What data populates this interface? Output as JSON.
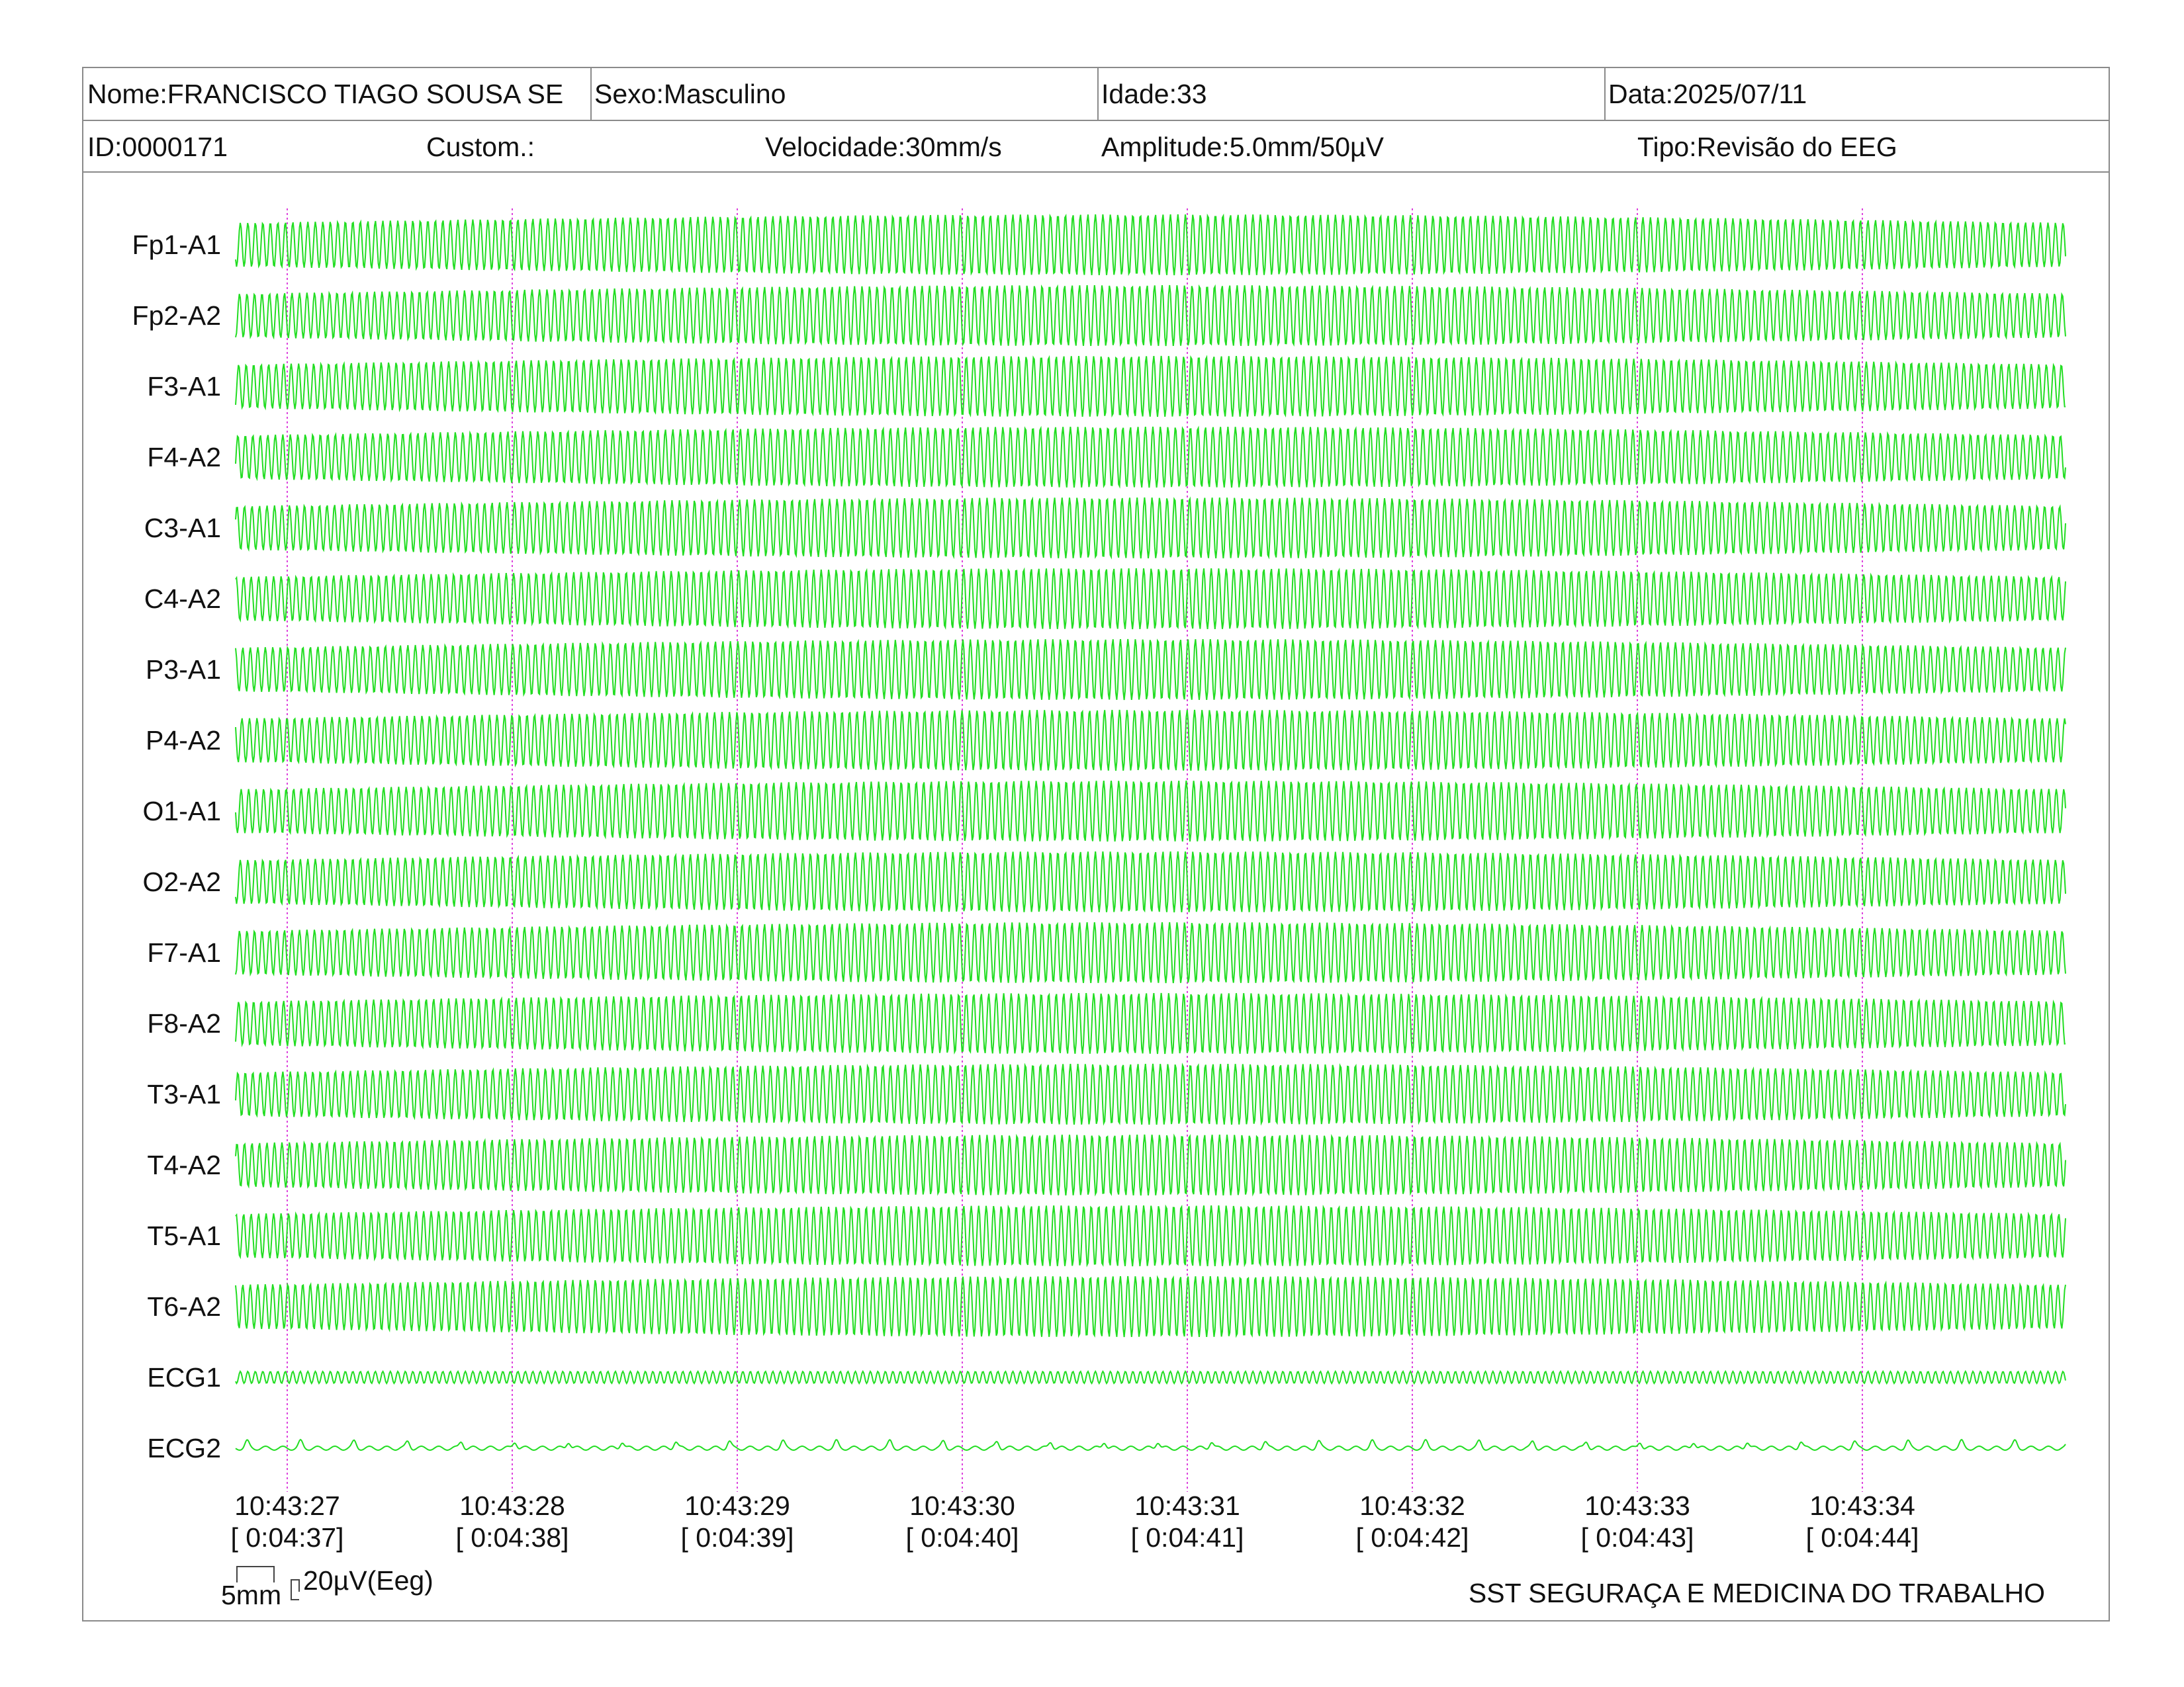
{
  "header": {
    "name": "Nome:FRANCISCO TIAGO SOUSA SE",
    "sex": "Sexo:Masculino",
    "age": "Idade:33",
    "date": "Data:2025/07/11",
    "id": "ID:0000171",
    "custom": "Custom.:",
    "speed": "Velocidade:30mm/s",
    "amplitude": "Amplitude:5.0mm/50µV",
    "type": "Tipo:Revisão do EEG"
  },
  "scale": {
    "time_label": "5mm",
    "amp_label": "20µV(Eeg)"
  },
  "footer": {
    "company": "SST SEGURAÇA E MEDICINA DO TRABALHO"
  },
  "colors": {
    "trace": "#22dd22",
    "marker": "#dd44dd",
    "border": "#8a8a8a"
  },
  "chart_data": {
    "type": "line",
    "title": "",
    "channels": [
      "Fp1-A1",
      "Fp2-A2",
      "F3-A1",
      "F4-A2",
      "C3-A1",
      "C4-A2",
      "P3-A1",
      "P4-A2",
      "O1-A1",
      "O2-A2",
      "F7-A1",
      "F8-A2",
      "T3-A1",
      "T4-A2",
      "T5-A1",
      "T6-A2",
      "ECG1",
      "ECG2"
    ],
    "time_ticks": [
      {
        "clock": "10:43:27",
        "elapsed": "[ 0:04:37]"
      },
      {
        "clock": "10:43:28",
        "elapsed": "[ 0:04:38]"
      },
      {
        "clock": "10:43:29",
        "elapsed": "[ 0:04:39]"
      },
      {
        "clock": "10:43:30",
        "elapsed": "[ 0:04:40]"
      },
      {
        "clock": "10:43:31",
        "elapsed": "[ 0:04:41]"
      },
      {
        "clock": "10:43:32",
        "elapsed": "[ 0:04:42]"
      },
      {
        "clock": "10:43:33",
        "elapsed": "[ 0:04:43]"
      },
      {
        "clock": "10:43:34",
        "elapsed": "[ 0:04:44]"
      }
    ],
    "x_range_seconds": [
      -0.23,
      7.9
    ],
    "eeg_frequency_hz": 30,
    "ecg1_frequency_hz": 7.5,
    "ecg2_type": "flat baseline with small beats"
  }
}
